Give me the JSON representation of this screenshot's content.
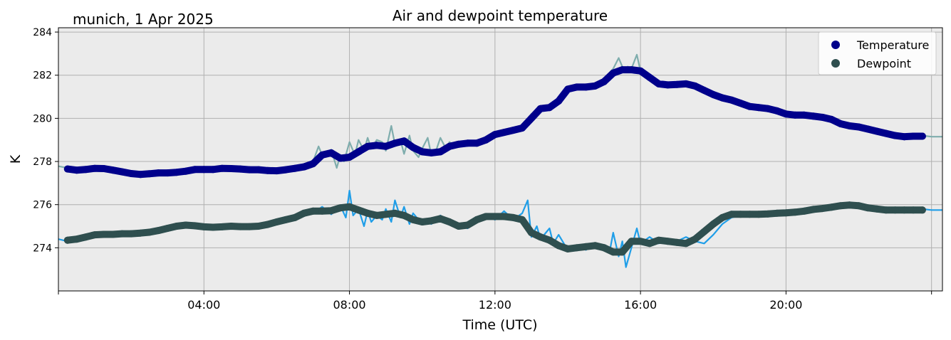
{
  "chart_data": {
    "type": "line",
    "title": "Air and dewpoint temperature",
    "subtitle": "munich, 1 Apr 2025",
    "xlabel": "Time (UTC)",
    "ylabel": "K",
    "x_unit": "hours UTC",
    "xlim": [
      0,
      24.3
    ],
    "ylim": [
      272.0,
      284.2
    ],
    "x_ticks": [
      0,
      4,
      8,
      12,
      16,
      20,
      24
    ],
    "x_tick_labels": [
      "",
      "04:00",
      "08:00",
      "12:00",
      "16:00",
      "20:00",
      ""
    ],
    "y_ticks": [
      274,
      276,
      278,
      280,
      282,
      284
    ],
    "y_tick_labels": [
      "274",
      "276",
      "278",
      "280",
      "282",
      "284"
    ],
    "grid": true,
    "legend_position": "top-right",
    "background": "#ebebeb",
    "series": [
      {
        "name": "Temperature",
        "kind": "smoothed-points",
        "color": "#00008b",
        "x": [
          0.25,
          0.5,
          0.75,
          1.0,
          1.25,
          1.5,
          1.75,
          2.0,
          2.25,
          2.5,
          2.75,
          3.0,
          3.25,
          3.5,
          3.75,
          4.0,
          4.25,
          4.5,
          4.75,
          5.0,
          5.25,
          5.5,
          5.75,
          6.0,
          6.25,
          6.5,
          6.75,
          7.0,
          7.25,
          7.5,
          7.75,
          8.0,
          8.25,
          8.5,
          8.75,
          9.0,
          9.25,
          9.5,
          9.75,
          10.0,
          10.25,
          10.5,
          10.75,
          11.0,
          11.25,
          11.5,
          11.75,
          12.0,
          12.25,
          12.5,
          12.75,
          13.0,
          13.25,
          13.5,
          13.75,
          14.0,
          14.25,
          14.5,
          14.75,
          15.0,
          15.25,
          15.5,
          15.75,
          16.0,
          16.25,
          16.5,
          16.75,
          17.0,
          17.25,
          17.5,
          17.75,
          18.0,
          18.25,
          18.5,
          18.75,
          19.0,
          19.25,
          19.5,
          19.75,
          20.0,
          20.25,
          20.5,
          20.75,
          21.0,
          21.25,
          21.5,
          21.75,
          22.0,
          22.25,
          22.5,
          22.75,
          23.0,
          23.25,
          23.5,
          23.75
        ],
        "y": [
          277.65,
          277.6,
          277.63,
          277.68,
          277.67,
          277.6,
          277.52,
          277.44,
          277.4,
          277.43,
          277.47,
          277.47,
          277.5,
          277.55,
          277.63,
          277.63,
          277.63,
          277.68,
          277.67,
          277.65,
          277.62,
          277.62,
          277.58,
          277.57,
          277.62,
          277.68,
          277.75,
          277.9,
          278.3,
          278.4,
          278.15,
          278.2,
          278.45,
          278.7,
          278.75,
          278.7,
          278.85,
          278.95,
          278.65,
          278.45,
          278.4,
          278.45,
          278.7,
          278.8,
          278.85,
          278.85,
          279.0,
          279.25,
          279.35,
          279.45,
          279.55,
          280.0,
          280.45,
          280.5,
          280.8,
          281.35,
          281.45,
          281.45,
          281.5,
          281.7,
          282.1,
          282.25,
          282.25,
          282.2,
          281.9,
          281.6,
          281.55,
          281.57,
          281.6,
          281.5,
          281.3,
          281.1,
          280.95,
          280.85,
          280.7,
          280.55,
          280.5,
          280.45,
          280.35,
          280.2,
          280.15,
          280.15,
          280.1,
          280.05,
          279.95,
          279.75,
          279.65,
          279.6,
          279.5,
          279.4,
          279.3,
          279.2,
          279.15,
          279.17,
          279.17
        ]
      },
      {
        "name": "Dewpoint",
        "kind": "smoothed-points",
        "color": "#2f4f4f",
        "x": [
          0.25,
          0.5,
          0.75,
          1.0,
          1.25,
          1.5,
          1.75,
          2.0,
          2.25,
          2.5,
          2.75,
          3.0,
          3.25,
          3.5,
          3.75,
          4.0,
          4.25,
          4.5,
          4.75,
          5.0,
          5.25,
          5.5,
          5.75,
          6.0,
          6.25,
          6.5,
          6.75,
          7.0,
          7.25,
          7.5,
          7.75,
          8.0,
          8.25,
          8.5,
          8.75,
          9.0,
          9.25,
          9.5,
          9.75,
          10.0,
          10.25,
          10.5,
          10.75,
          11.0,
          11.25,
          11.5,
          11.75,
          12.0,
          12.25,
          12.5,
          12.75,
          13.0,
          13.25,
          13.5,
          13.75,
          14.0,
          14.25,
          14.5,
          14.75,
          15.0,
          15.25,
          15.5,
          15.75,
          16.0,
          16.25,
          16.5,
          16.75,
          17.0,
          17.25,
          17.5,
          17.75,
          18.0,
          18.25,
          18.5,
          18.75,
          19.0,
          19.25,
          19.5,
          19.75,
          20.0,
          20.25,
          20.5,
          20.75,
          21.0,
          21.25,
          21.5,
          21.75,
          22.0,
          22.25,
          22.5,
          22.75,
          23.0,
          23.25,
          23.5,
          23.75
        ],
        "y": [
          274.35,
          274.4,
          274.5,
          274.6,
          274.62,
          274.62,
          274.65,
          274.65,
          274.68,
          274.72,
          274.8,
          274.9,
          275.0,
          275.05,
          275.02,
          274.97,
          274.95,
          274.97,
          275.0,
          274.98,
          274.98,
          275.0,
          275.08,
          275.2,
          275.3,
          275.4,
          275.6,
          275.7,
          275.7,
          275.72,
          275.85,
          275.9,
          275.75,
          275.6,
          275.5,
          275.55,
          275.6,
          275.5,
          275.3,
          275.2,
          275.25,
          275.35,
          275.2,
          275.0,
          275.05,
          275.3,
          275.45,
          275.45,
          275.45,
          275.4,
          275.3,
          274.7,
          274.5,
          274.35,
          274.1,
          273.95,
          274.0,
          274.05,
          274.1,
          274.0,
          273.8,
          273.8,
          274.3,
          274.3,
          274.2,
          274.35,
          274.3,
          274.25,
          274.2,
          274.4,
          274.75,
          275.1,
          275.4,
          275.55,
          275.55,
          275.55,
          275.55,
          275.57,
          275.6,
          275.62,
          275.65,
          275.7,
          275.78,
          275.82,
          275.88,
          275.95,
          275.98,
          275.95,
          275.85,
          275.8,
          275.75,
          275.75,
          275.75,
          275.75,
          275.75
        ]
      },
      {
        "name": "",
        "kind": "raw-temperature",
        "color": "#7fadad",
        "x": [
          0.0,
          0.25,
          0.5,
          0.75,
          1.0,
          1.25,
          1.5,
          1.75,
          2.0,
          2.25,
          2.5,
          2.75,
          3.0,
          3.25,
          3.5,
          3.75,
          4.0,
          4.25,
          4.5,
          4.75,
          5.0,
          5.25,
          5.5,
          5.75,
          6.0,
          6.25,
          6.5,
          6.75,
          7.0,
          7.15,
          7.25,
          7.5,
          7.65,
          7.75,
          7.85,
          8.0,
          8.15,
          8.25,
          8.4,
          8.5,
          8.6,
          8.75,
          8.9,
          9.0,
          9.15,
          9.25,
          9.4,
          9.5,
          9.65,
          9.75,
          9.9,
          10.0,
          10.15,
          10.25,
          10.4,
          10.5,
          10.65,
          10.75,
          10.9,
          11.0,
          11.25,
          11.5,
          11.75,
          12.0,
          12.25,
          12.5,
          12.75,
          12.9,
          13.0,
          13.25,
          13.5,
          13.75,
          14.0,
          14.25,
          14.5,
          14.75,
          15.0,
          15.25,
          15.4,
          15.55,
          15.65,
          15.75,
          15.9,
          16.0,
          16.2,
          16.4,
          16.6,
          16.75,
          17.0,
          17.25,
          17.5,
          17.75,
          18.0,
          18.25,
          18.5,
          18.75,
          19.0,
          19.25,
          19.5,
          19.75,
          20.0,
          20.25,
          20.5,
          20.75,
          21.0,
          21.25,
          21.5,
          21.75,
          22.0,
          22.25,
          22.5,
          22.75,
          23.0,
          23.25,
          23.5,
          23.75,
          24.0,
          24.3
        ],
        "y": [
          277.78,
          277.7,
          277.55,
          277.65,
          277.7,
          277.62,
          277.55,
          277.48,
          277.38,
          277.45,
          277.4,
          277.5,
          277.45,
          277.55,
          277.58,
          277.68,
          277.62,
          277.6,
          277.7,
          277.65,
          277.68,
          277.6,
          277.65,
          277.55,
          277.65,
          277.6,
          277.7,
          277.85,
          278.0,
          278.7,
          278.3,
          278.55,
          277.7,
          278.3,
          278.0,
          278.9,
          278.3,
          279.0,
          278.5,
          279.1,
          278.6,
          279.0,
          278.9,
          278.5,
          279.65,
          278.8,
          279.0,
          278.35,
          279.2,
          278.5,
          278.2,
          278.6,
          279.1,
          278.3,
          278.6,
          279.1,
          278.6,
          278.9,
          278.7,
          278.8,
          278.85,
          278.9,
          279.1,
          279.3,
          279.25,
          279.45,
          279.6,
          280.0,
          280.2,
          280.45,
          280.55,
          280.8,
          281.35,
          281.5,
          281.4,
          281.6,
          281.85,
          282.3,
          282.8,
          282.2,
          282.4,
          282.3,
          282.95,
          282.2,
          282.0,
          281.6,
          281.5,
          281.6,
          281.55,
          281.6,
          281.5,
          281.3,
          281.1,
          280.9,
          280.9,
          280.7,
          280.55,
          280.5,
          280.45,
          280.35,
          280.25,
          280.1,
          280.15,
          280.15,
          280.05,
          279.9,
          279.8,
          279.65,
          279.6,
          279.45,
          279.4,
          279.25,
          279.15,
          279.2,
          279.15,
          279.2,
          279.15,
          279.15
        ]
      },
      {
        "name": "",
        "kind": "raw-dewpoint",
        "color": "#1f9ee8",
        "x": [
          0.0,
          0.25,
          0.5,
          0.75,
          1.0,
          1.25,
          1.5,
          1.75,
          2.0,
          2.25,
          2.5,
          2.75,
          3.0,
          3.25,
          3.5,
          3.75,
          4.0,
          4.25,
          4.5,
          4.75,
          5.0,
          5.25,
          5.5,
          5.75,
          6.0,
          6.25,
          6.5,
          6.75,
          7.0,
          7.25,
          7.5,
          7.75,
          7.9,
          8.0,
          8.1,
          8.25,
          8.4,
          8.5,
          8.6,
          8.75,
          8.9,
          9.0,
          9.15,
          9.25,
          9.4,
          9.5,
          9.65,
          9.75,
          9.9,
          10.0,
          10.25,
          10.5,
          10.75,
          11.0,
          11.25,
          11.5,
          11.75,
          12.0,
          12.25,
          12.5,
          12.75,
          12.9,
          13.0,
          13.15,
          13.25,
          13.5,
          13.6,
          13.75,
          14.0,
          14.25,
          14.5,
          14.75,
          15.0,
          15.15,
          15.25,
          15.4,
          15.5,
          15.6,
          15.75,
          15.9,
          16.0,
          16.25,
          16.5,
          16.75,
          17.0,
          17.25,
          17.5,
          17.75,
          18.0,
          18.25,
          18.5,
          18.75,
          19.0,
          19.25,
          19.5,
          19.75,
          20.0,
          20.25,
          20.5,
          20.75,
          21.0,
          21.25,
          21.5,
          21.75,
          22.0,
          22.25,
          22.5,
          22.75,
          23.0,
          23.25,
          23.5,
          23.75,
          24.0,
          24.3
        ],
        "y": [
          274.4,
          274.3,
          274.45,
          274.5,
          274.65,
          274.55,
          274.7,
          274.6,
          274.7,
          274.6,
          274.75,
          274.7,
          274.85,
          275.0,
          275.1,
          275.0,
          275.05,
          274.9,
          275.0,
          274.95,
          275.05,
          274.9,
          275.0,
          275.1,
          275.2,
          275.3,
          275.35,
          275.7,
          275.6,
          275.9,
          275.55,
          275.95,
          275.4,
          276.65,
          275.5,
          275.8,
          275.0,
          275.7,
          275.2,
          275.5,
          275.3,
          275.8,
          275.2,
          276.2,
          275.4,
          275.9,
          275.1,
          275.6,
          275.3,
          275.3,
          275.1,
          275.5,
          275.2,
          275.0,
          274.9,
          275.4,
          275.5,
          275.3,
          275.7,
          275.3,
          275.6,
          276.2,
          274.5,
          275.0,
          274.4,
          274.9,
          274.2,
          274.6,
          273.9,
          274.1,
          273.9,
          274.2,
          274.0,
          273.8,
          274.7,
          273.6,
          274.3,
          273.1,
          274.0,
          274.9,
          274.2,
          274.5,
          274.2,
          274.4,
          274.3,
          274.5,
          274.3,
          274.2,
          274.6,
          275.1,
          275.4,
          275.5,
          275.6,
          275.5,
          275.5,
          275.6,
          275.6,
          275.65,
          275.7,
          275.8,
          275.8,
          275.9,
          276.0,
          276.0,
          275.95,
          275.9,
          275.8,
          275.7,
          275.75,
          275.75,
          275.7,
          275.8,
          275.75,
          275.75
        ]
      }
    ]
  }
}
